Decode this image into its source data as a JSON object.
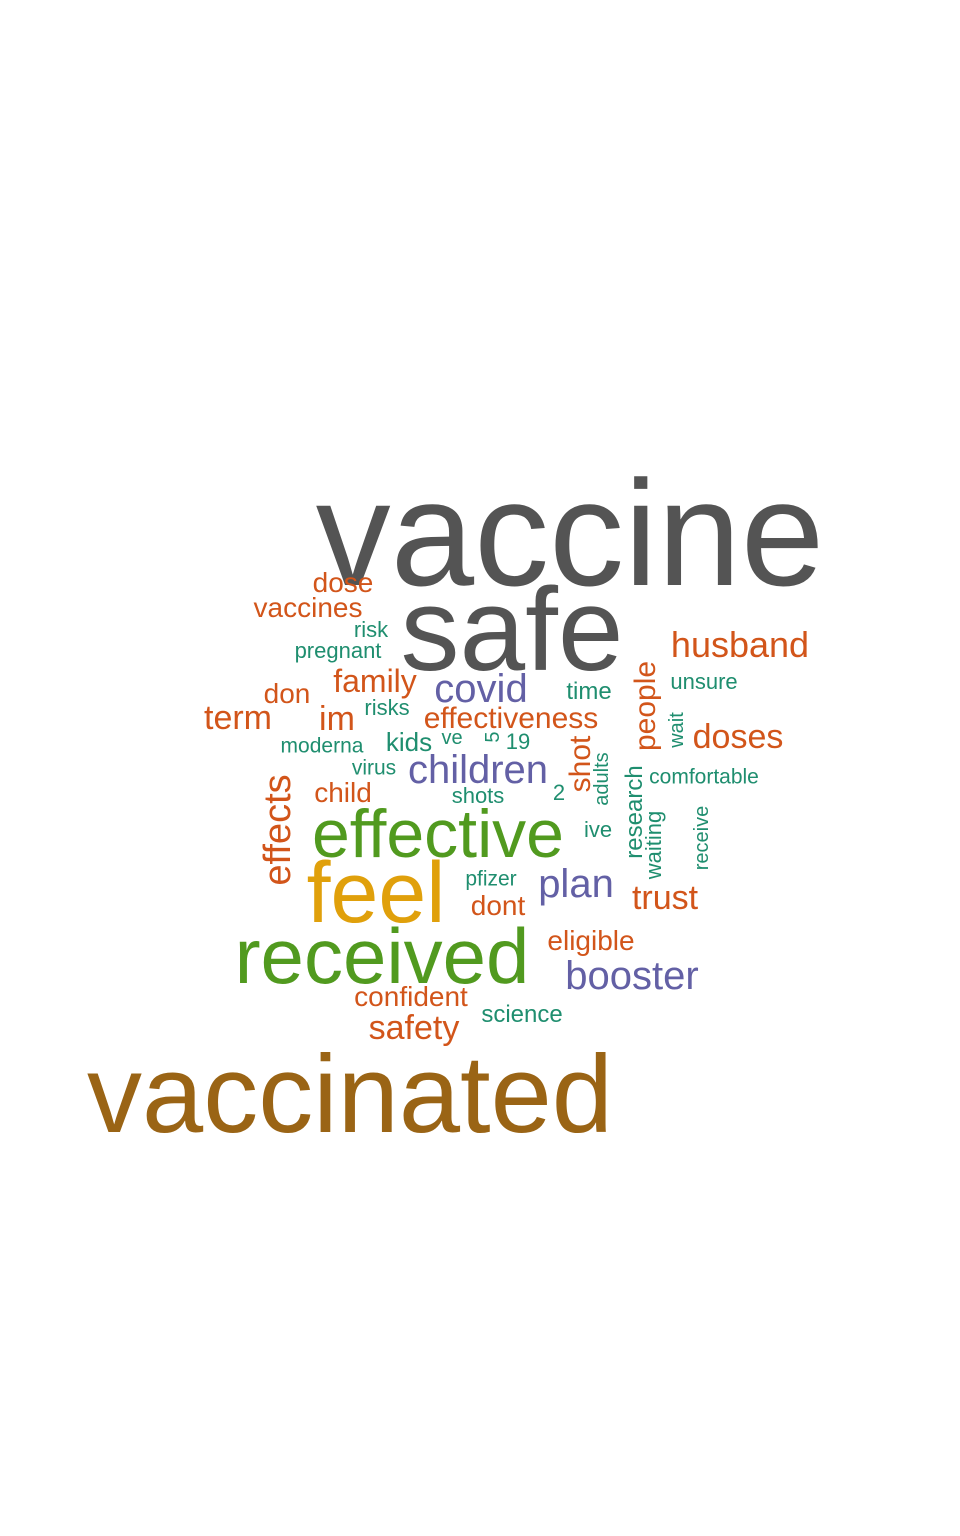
{
  "colors": {
    "gray": "#545454",
    "gold": "#E0A00B",
    "brown": "#9A6415",
    "green": "#519A1F",
    "purple": "#6360A5",
    "orange": "#D2551A",
    "teal": "#1F8E6F"
  },
  "words": [
    {
      "text": "vaccine",
      "color": "gray"
    },
    {
      "text": "safe",
      "color": "gray"
    },
    {
      "text": "vaccinated",
      "color": "brown"
    },
    {
      "text": "feel",
      "color": "gold"
    },
    {
      "text": "received",
      "color": "green"
    },
    {
      "text": "effective",
      "color": "green"
    },
    {
      "text": "booster",
      "color": "purple"
    },
    {
      "text": "children",
      "color": "purple"
    },
    {
      "text": "covid",
      "color": "purple"
    },
    {
      "text": "plan",
      "color": "purple"
    },
    {
      "text": "husband",
      "color": "orange"
    },
    {
      "text": "dose",
      "color": "orange"
    },
    {
      "text": "vaccines",
      "color": "orange"
    },
    {
      "text": "family",
      "color": "orange"
    },
    {
      "text": "don",
      "color": "orange"
    },
    {
      "text": "term",
      "color": "orange"
    },
    {
      "text": "im",
      "color": "orange"
    },
    {
      "text": "effectiveness",
      "color": "orange"
    },
    {
      "text": "doses",
      "color": "orange"
    },
    {
      "text": "effects",
      "color": "orange"
    },
    {
      "text": "child",
      "color": "orange"
    },
    {
      "text": "shot",
      "color": "orange"
    },
    {
      "text": "people",
      "color": "orange"
    },
    {
      "text": "trust",
      "color": "orange"
    },
    {
      "text": "dont",
      "color": "orange"
    },
    {
      "text": "eligible",
      "color": "orange"
    },
    {
      "text": "confident",
      "color": "orange"
    },
    {
      "text": "safety",
      "color": "orange"
    },
    {
      "text": "risk",
      "color": "teal"
    },
    {
      "text": "pregnant",
      "color": "teal"
    },
    {
      "text": "time",
      "color": "teal"
    },
    {
      "text": "unsure",
      "color": "teal"
    },
    {
      "text": "risks",
      "color": "teal"
    },
    {
      "text": "moderna",
      "color": "teal"
    },
    {
      "text": "kids",
      "color": "teal"
    },
    {
      "text": "ve",
      "color": "teal"
    },
    {
      "text": "5",
      "color": "teal"
    },
    {
      "text": "19",
      "color": "teal"
    },
    {
      "text": "wait",
      "color": "teal"
    },
    {
      "text": "virus",
      "color": "teal"
    },
    {
      "text": "adults",
      "color": "teal"
    },
    {
      "text": "comfortable",
      "color": "teal"
    },
    {
      "text": "shots",
      "color": "teal"
    },
    {
      "text": "2",
      "color": "teal"
    },
    {
      "text": "research",
      "color": "teal"
    },
    {
      "text": "ive",
      "color": "teal"
    },
    {
      "text": "waiting",
      "color": "teal"
    },
    {
      "text": "receive",
      "color": "teal"
    },
    {
      "text": "pfizer",
      "color": "teal"
    },
    {
      "text": "science",
      "color": "teal"
    }
  ]
}
